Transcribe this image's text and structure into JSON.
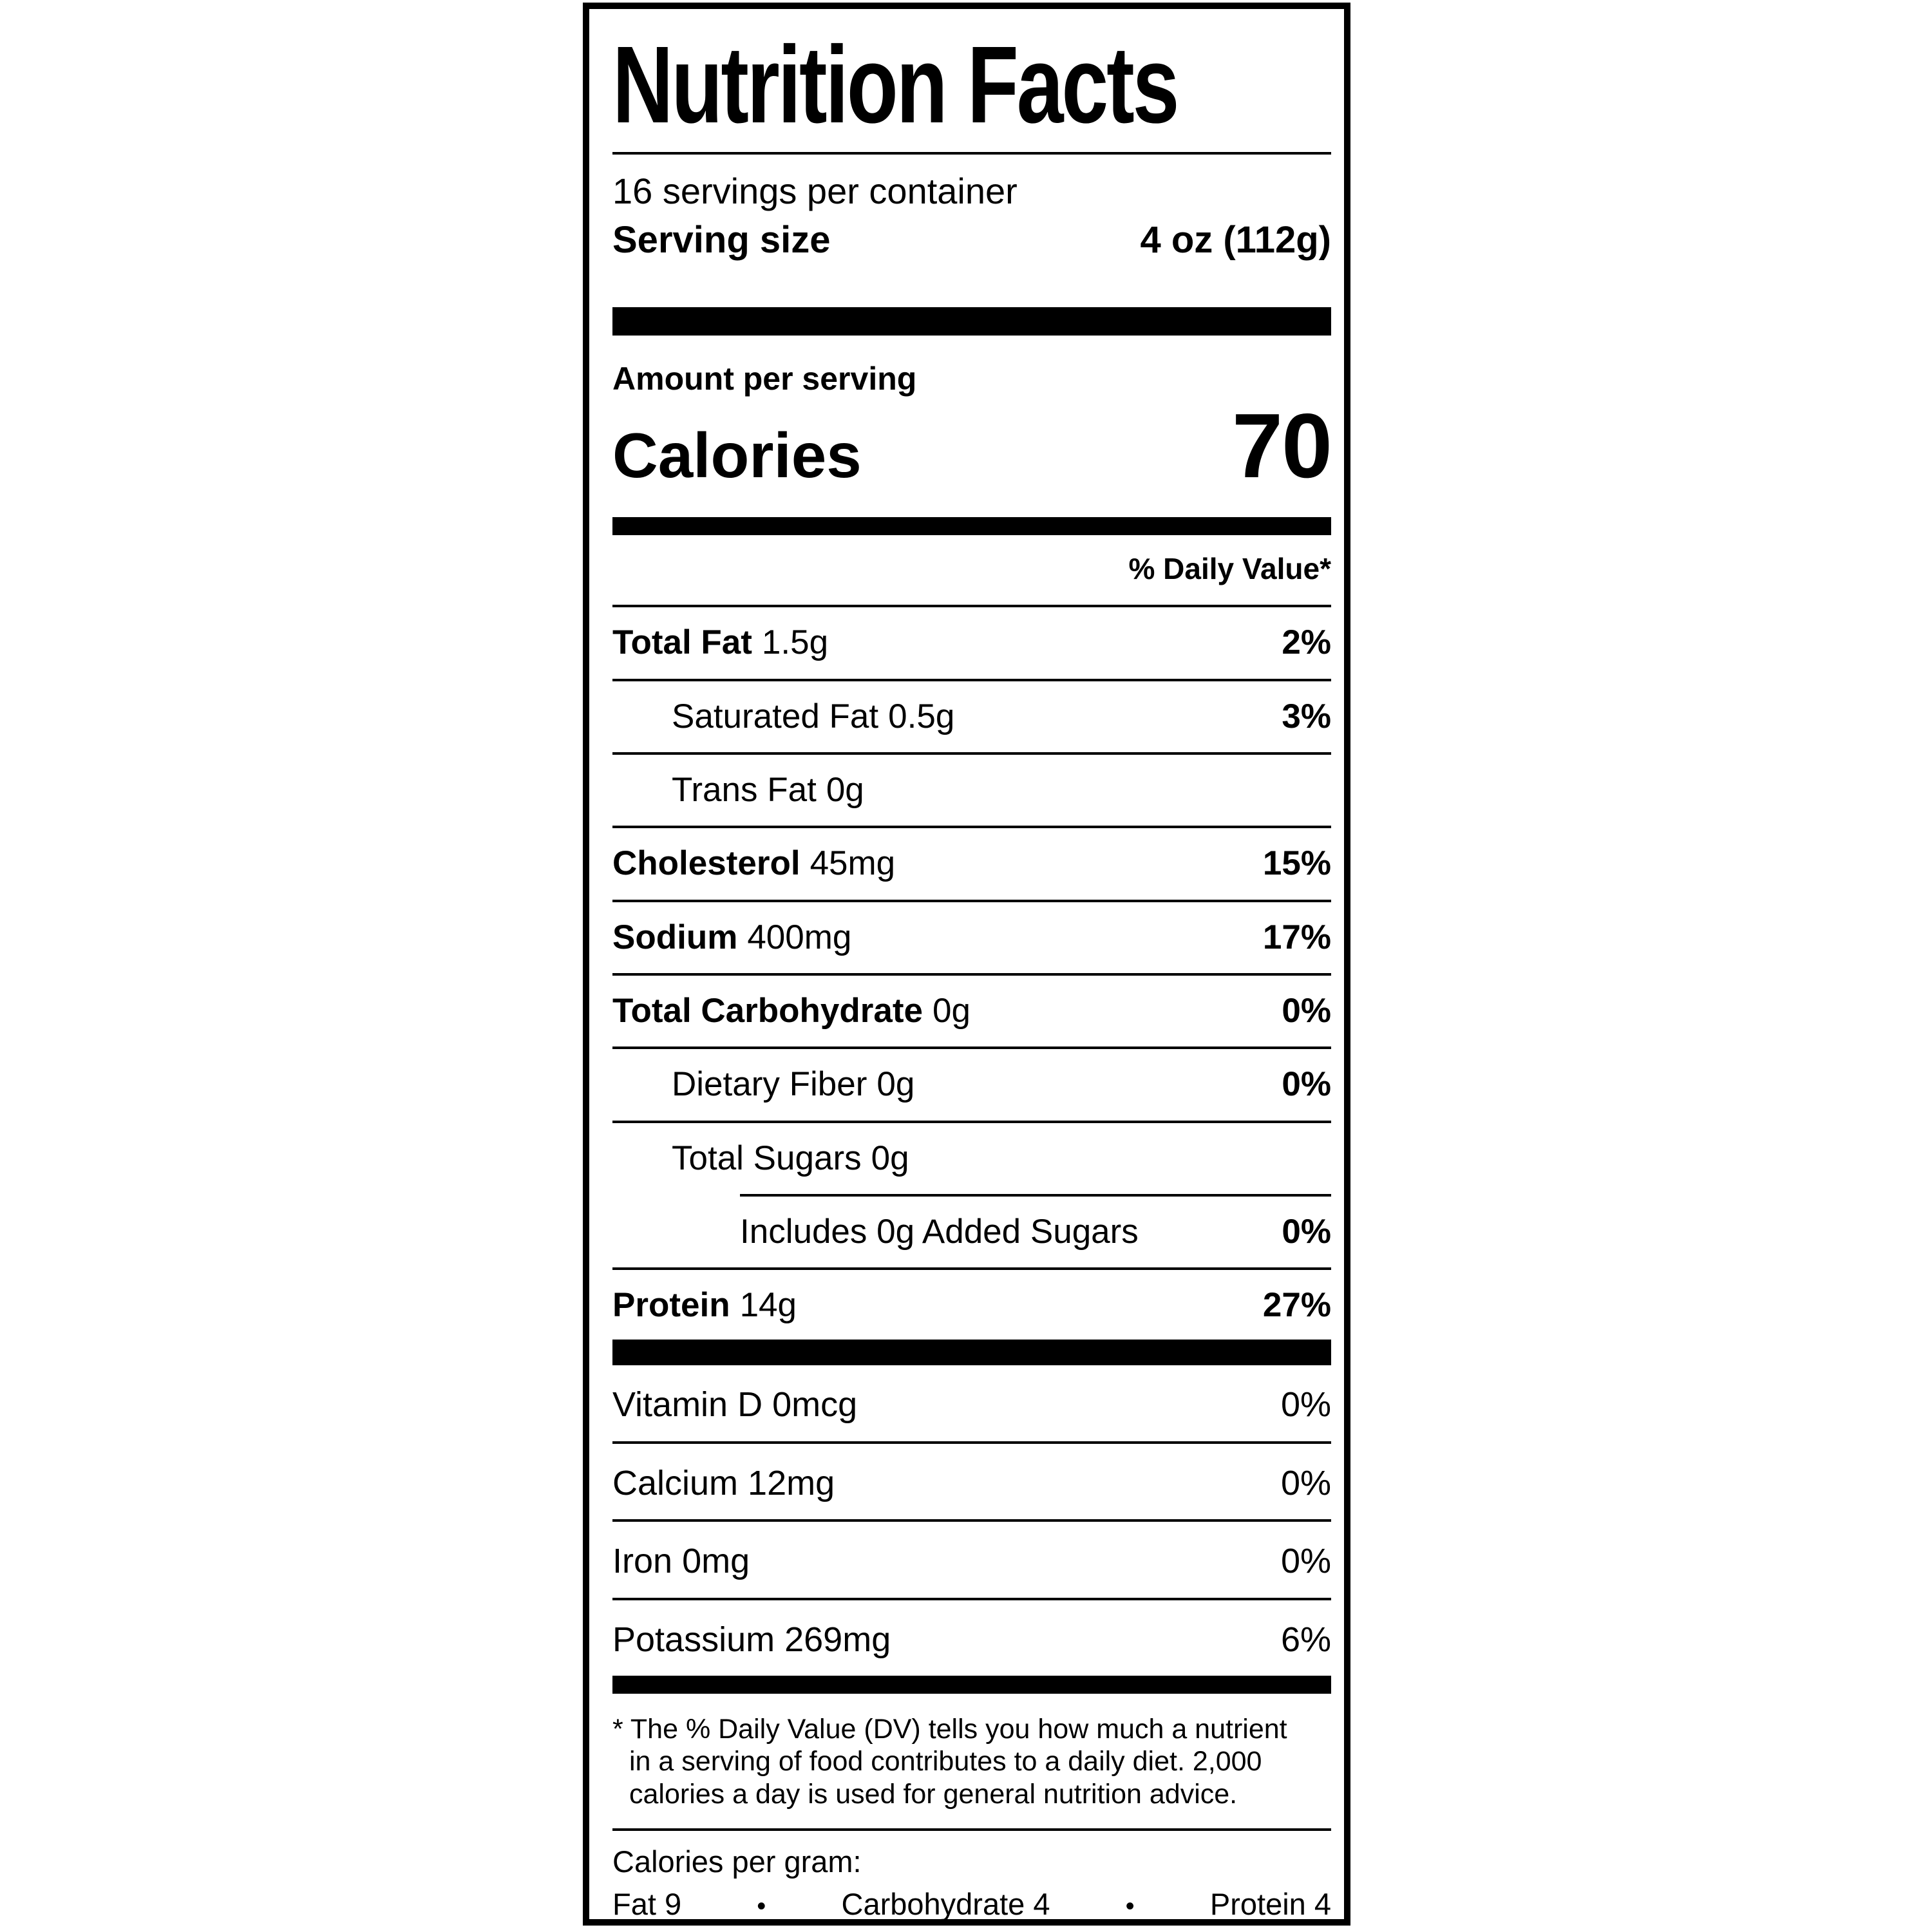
{
  "title": "Nutrition Facts",
  "servings_per_container": "16 servings per container",
  "serving_size": {
    "label": "Serving size",
    "value": "4 oz (112g)"
  },
  "amount_per_serving": "Amount per serving",
  "calories": {
    "label": "Calories",
    "value": "70"
  },
  "daily_value_header": "% Daily Value*",
  "nutrients": [
    {
      "name": "Total Fat",
      "amount": "1.5g",
      "dv": "2%"
    },
    {
      "name": "Saturated Fat",
      "amount": "0.5g",
      "dv": "3%"
    },
    {
      "name": "Trans Fat",
      "amount": "0g",
      "dv": ""
    },
    {
      "name": "Cholesterol",
      "amount": "45mg",
      "dv": "15%"
    },
    {
      "name": "Sodium",
      "amount": "400mg",
      "dv": "17%"
    },
    {
      "name": "Total Carbohydrate",
      "amount": "0g",
      "dv": "0%"
    },
    {
      "name": "Dietary Fiber",
      "amount": "0g",
      "dv": "0%"
    },
    {
      "name": "Total Sugars",
      "amount": "0g",
      "dv": ""
    },
    {
      "name": "Includes 0g Added Sugars",
      "amount": "",
      "dv": "0%"
    },
    {
      "name": "Protein",
      "amount": "14g",
      "dv": "27%"
    }
  ],
  "micronutrients": [
    {
      "name": "Vitamin D",
      "amount": "0mcg",
      "dv": "0%"
    },
    {
      "name": "Calcium",
      "amount": "12mg",
      "dv": "0%"
    },
    {
      "name": "Iron",
      "amount": "0mg",
      "dv": "0%"
    },
    {
      "name": "Potassium",
      "amount": "269mg",
      "dv": "6%"
    }
  ],
  "footnote": {
    "lines": [
      "* The % Daily Value (DV) tells you how much a nutrient",
      "in a serving of food contributes to a daily diet. 2,000",
      "calories a day is used for general nutrition advice."
    ]
  },
  "calories_per_gram": {
    "label": "Calories per gram:",
    "items": [
      "Fat 9",
      "Carbohydrate 4",
      "Protein 4"
    ],
    "separator": "•"
  },
  "colors": {
    "ink": "#000000",
    "paper": "#ffffff"
  }
}
